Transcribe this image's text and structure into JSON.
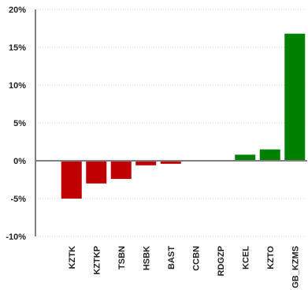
{
  "chart_data": {
    "type": "bar",
    "title": "",
    "xlabel": "",
    "ylabel": "",
    "categories": [
      "KZTK",
      "KZTKP",
      "TSBN",
      "HSBK",
      "BAST",
      "CCBN",
      "RDGZP",
      "KCEL",
      "KZTO",
      "GB_KZMS"
    ],
    "values": [
      -5.0,
      -3.0,
      -2.4,
      -0.6,
      -0.4,
      0.0,
      0.0,
      0.8,
      1.5,
      16.8
    ],
    "ylim": [
      -10,
      20
    ],
    "yticks": [
      -10,
      -5,
      0,
      5,
      10,
      15,
      20
    ],
    "ytick_labels": [
      "-10%",
      "-5%",
      "0%",
      "5%",
      "10%",
      "15%",
      "20%"
    ],
    "grid": true,
    "legend": "none",
    "colors": {
      "negative": "#c00000",
      "positive": "#008000",
      "axis": "#808080",
      "grid": "#d9d9d9"
    }
  }
}
